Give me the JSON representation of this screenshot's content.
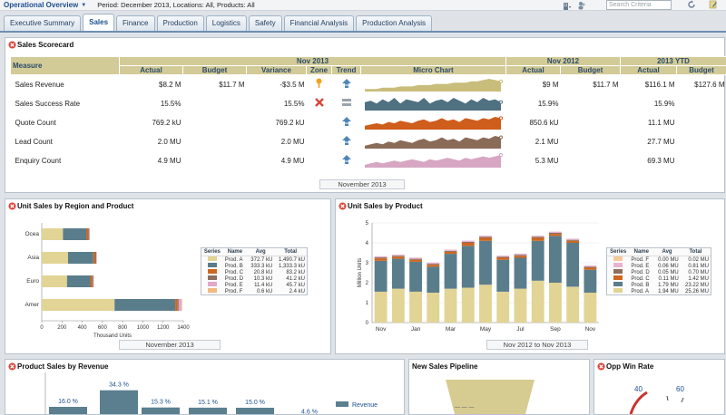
{
  "app": {
    "title": "Operational Overview",
    "filters": "Period: December 2013, Locations: All, Products: All",
    "search_placeholder": "Search Criteria"
  },
  "tabs": [
    {
      "label": "Executive Summary",
      "active": false
    },
    {
      "label": "Sales",
      "active": true
    },
    {
      "label": "Finance",
      "active": false
    },
    {
      "label": "Production",
      "active": false
    },
    {
      "label": "Logistics",
      "active": false
    },
    {
      "label": "Safety",
      "active": false
    },
    {
      "label": "Financial Analysis",
      "active": false
    },
    {
      "label": "Production Analysis",
      "active": false
    }
  ],
  "scorecard": {
    "title": "Sales Scorecard",
    "measure_header": "Measure",
    "groups": [
      "Nov 2013",
      "Nov 2012",
      "2013 YTD"
    ],
    "columns": [
      "Actual",
      "Budget",
      "Variance",
      "Zone",
      "Trend",
      "Micro Chart",
      "Actual",
      "Budget",
      "Actual",
      "Budget"
    ],
    "rows": [
      {
        "measure": "Sales Revenue",
        "actual": "$8.2 M",
        "budget": "$11.7 M",
        "variance": "-$3.5 M",
        "zone": "warning",
        "trend": "up",
        "ly_actual": "$9 M",
        "ly_budget": "$11.7 M",
        "ytd_actual": "$116.1 M",
        "ytd_budget": "$127.6 M",
        "color": "#c8bd7a",
        "spark": [
          2,
          2,
          2,
          3,
          3,
          3,
          4,
          4,
          4,
          5,
          5,
          5,
          6,
          6,
          6,
          7,
          7,
          7,
          8,
          8,
          9,
          10,
          9,
          8
        ]
      },
      {
        "measure": "Sales Success Rate",
        "actual": "15.5%",
        "budget": "",
        "variance": "15.5%",
        "zone": "bad",
        "trend": "flat",
        "ly_actual": "15.9%",
        "ly_budget": "",
        "ytd_actual": "15.9%",
        "ytd_budget": "",
        "color": "#4f7181",
        "spark": [
          6,
          7,
          5,
          8,
          6,
          9,
          5,
          8,
          7,
          6,
          9,
          5,
          7,
          8,
          6,
          9,
          7,
          5,
          8,
          6,
          9,
          7,
          8,
          6
        ]
      },
      {
        "measure": "Quote Count",
        "actual": "769.2 kU",
        "budget": "",
        "variance": "769.2 kU",
        "zone": "",
        "trend": "up",
        "ly_actual": "850.6 kU",
        "ly_budget": "",
        "ytd_actual": "11.1 MU",
        "ytd_budget": "",
        "color": "#cf5d1c",
        "spark": [
          3,
          4,
          5,
          4,
          6,
          5,
          7,
          6,
          5,
          7,
          8,
          6,
          7,
          9,
          7,
          8,
          6,
          9,
          8,
          7,
          9,
          8,
          10,
          9
        ]
      },
      {
        "measure": "Lead Count",
        "actual": "2.0 MU",
        "budget": "",
        "variance": "2.0 MU",
        "zone": "",
        "trend": "up",
        "ly_actual": "2.1 MU",
        "ly_budget": "",
        "ytd_actual": "27.7 MU",
        "ytd_budget": "",
        "color": "#8a6b58",
        "spark": [
          2,
          3,
          4,
          3,
          5,
          4,
          6,
          5,
          4,
          6,
          7,
          5,
          6,
          8,
          6,
          7,
          5,
          8,
          7,
          6,
          8,
          7,
          9,
          8
        ]
      },
      {
        "measure": "Enquiry Count",
        "actual": "4.9 MU",
        "budget": "",
        "variance": "4.9 MU",
        "zone": "",
        "trend": "up",
        "ly_actual": "5.3 MU",
        "ly_budget": "",
        "ytd_actual": "69.3 MU",
        "ytd_budget": "",
        "color": "#d6a6c2",
        "spark": [
          2,
          3,
          4,
          3,
          4,
          5,
          4,
          5,
          6,
          5,
          4,
          6,
          5,
          6,
          7,
          6,
          5,
          7,
          6,
          7,
          8,
          7,
          8,
          9
        ]
      }
    ],
    "footer": "November 2013"
  },
  "unit_by_region": {
    "title": "Unit Sales by Region and Product",
    "footer": "November 2013",
    "xlabel": "Thousand Units",
    "legend_headers": [
      "Series",
      "Name",
      "Avg",
      "Total"
    ],
    "legend": [
      {
        "name": "Prod. A",
        "avg": "372.7 kU",
        "total": "1,490.7 kU",
        "color": "#e1d495"
      },
      {
        "name": "Prod. B",
        "avg": "333.3 kU",
        "total": "1,333.3 kU",
        "color": "#5a7d8c"
      },
      {
        "name": "Prod. C",
        "avg": "20.8 kU",
        "total": "83.2 kU",
        "color": "#d0661e"
      },
      {
        "name": "Prod. D",
        "avg": "10.3 kU",
        "total": "41.2 kU",
        "color": "#8b6f5f"
      },
      {
        "name": "Prod. E",
        "avg": "11.4 kU",
        "total": "45.7 kU",
        "color": "#e3a9c8"
      },
      {
        "name": "Prod. F",
        "avg": "0.6 kU",
        "total": "2.4 kU",
        "color": "#f2b980"
      }
    ]
  },
  "unit_by_product": {
    "title": "Unit Sales by Product",
    "footer": "Nov 2012 to Nov 2013",
    "ylabel": "Million Units",
    "legend_headers": [
      "Series",
      "Name",
      "Avg",
      "Total"
    ],
    "legend": [
      {
        "name": "Prod. F",
        "avg": "0.00 MU",
        "total": "0.02 MU",
        "color": "#f6c89a"
      },
      {
        "name": "Prod. E",
        "avg": "0.06 MU",
        "total": "0.81 MU",
        "color": "#e8b4d0"
      },
      {
        "name": "Prod. D",
        "avg": "0.05 MU",
        "total": "0.70 MU",
        "color": "#8b6f5f"
      },
      {
        "name": "Prod. C",
        "avg": "0.11 MU",
        "total": "1.42 MU",
        "color": "#d0661e"
      },
      {
        "name": "Prod. B",
        "avg": "1.79 MU",
        "total": "23.22 MU",
        "color": "#5a7d8c"
      },
      {
        "name": "Prod. A",
        "avg": "1.94 MU",
        "total": "25.26 MU",
        "color": "#e1d495"
      }
    ]
  },
  "product_revenue": {
    "title": "Product Sales by Revenue",
    "legend_label": "Revenue"
  },
  "pipeline": {
    "title": "New Sales Pipeline"
  },
  "win_rate": {
    "title": "Opp Win Rate",
    "labels": [
      "40",
      "60"
    ]
  },
  "chart_data": [
    {
      "type": "bar",
      "title": "Unit Sales by Region and Product",
      "orientation": "horizontal-stacked",
      "categories": [
        "Ocea",
        "Asia",
        "Euro",
        "Amer"
      ],
      "xlabel": "Thousand Units",
      "xlim": [
        0,
        1400
      ],
      "xticks": [
        0,
        200,
        400,
        600,
        800,
        1000,
        1200,
        1400
      ],
      "series": [
        {
          "name": "Prod. A",
          "values": [
            210,
            260,
            250,
            720
          ]
        },
        {
          "name": "Prod. B",
          "values": [
            230,
            250,
            230,
            600
          ]
        },
        {
          "name": "Prod. C",
          "values": [
            20,
            20,
            20,
            23
          ]
        },
        {
          "name": "Prod. D",
          "values": [
            10,
            10,
            10,
            11
          ]
        },
        {
          "name": "Prod. E",
          "values": [
            5,
            5,
            5,
            30
          ]
        },
        {
          "name": "Prod. F",
          "values": [
            0,
            0,
            0,
            2
          ]
        }
      ]
    },
    {
      "type": "bar",
      "title": "Unit Sales by Product",
      "orientation": "vertical-stacked",
      "categories": [
        "Nov",
        "Dec",
        "Jan",
        "Feb",
        "Mar",
        "Apr",
        "May",
        "Jun",
        "Jul",
        "Aug",
        "Sep",
        "Oct",
        "Nov"
      ],
      "xticks": [
        "Nov",
        "Jan",
        "Mar",
        "May",
        "Jul",
        "Sep",
        "Nov"
      ],
      "ylabel": "Million Units",
      "ylim": [
        0,
        5
      ],
      "yticks": [
        0,
        1,
        2,
        3,
        4,
        5
      ],
      "series": [
        {
          "name": "Prod. A",
          "values": [
            1.55,
            1.7,
            1.55,
            1.5,
            1.7,
            1.75,
            1.9,
            1.55,
            1.7,
            2.1,
            2.0,
            1.8,
            1.5
          ]
        },
        {
          "name": "Prod. B",
          "values": [
            1.55,
            1.5,
            1.5,
            1.3,
            1.75,
            2.1,
            2.2,
            1.6,
            1.55,
            2.0,
            2.35,
            2.2,
            1.15
          ]
        },
        {
          "name": "Prod. C",
          "values": [
            0.12,
            0.1,
            0.1,
            0.1,
            0.1,
            0.15,
            0.15,
            0.1,
            0.1,
            0.15,
            0.1,
            0.1,
            0.1
          ]
        },
        {
          "name": "Prod. D",
          "values": [
            0.05,
            0.05,
            0.05,
            0.05,
            0.05,
            0.05,
            0.05,
            0.05,
            0.05,
            0.05,
            0.05,
            0.05,
            0.05
          ]
        },
        {
          "name": "Prod. E",
          "values": [
            0.06,
            0.06,
            0.06,
            0.06,
            0.06,
            0.06,
            0.06,
            0.06,
            0.06,
            0.06,
            0.06,
            0.06,
            0.06
          ]
        },
        {
          "name": "Prod. F",
          "values": [
            0,
            0,
            0,
            0,
            0,
            0,
            0,
            0,
            0,
            0,
            0,
            0,
            0
          ]
        }
      ]
    },
    {
      "type": "bar",
      "title": "Product Sales by Revenue",
      "series": [
        {
          "name": "Revenue",
          "values": [
            16.0,
            34.3,
            15.3,
            15.1,
            15.0,
            4.6
          ]
        }
      ],
      "data_labels": [
        "16.0 %",
        "34.3 %",
        "15.3 %",
        "15.1 %",
        "15.0 %",
        "4.6 %"
      ]
    }
  ]
}
